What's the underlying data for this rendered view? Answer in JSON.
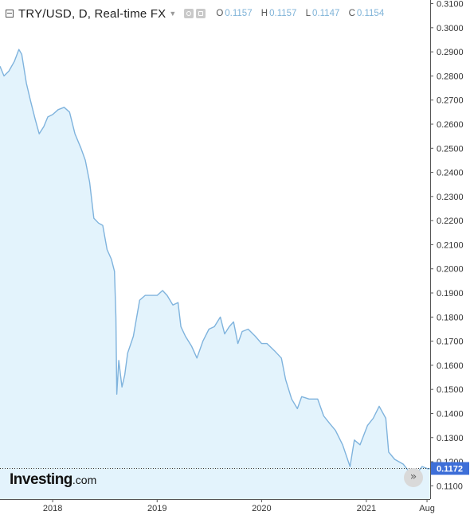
{
  "header": {
    "symbol": "TRY/USD, D, Real-time FX",
    "ohlc": [
      {
        "key": "O",
        "value": "0.1157"
      },
      {
        "key": "H",
        "value": "0.1157"
      },
      {
        "key": "L",
        "value": "0.1147"
      },
      {
        "key": "C",
        "value": "0.1154"
      }
    ]
  },
  "logo": {
    "brand": "Investing",
    "suffix": ".com"
  },
  "colors": {
    "line": "#7fb3dd",
    "area": "#e3f3fc",
    "price_tag": "#3e6fd8"
  },
  "scroll_button": {
    "label": "»"
  },
  "chart_data": {
    "type": "area",
    "title": "",
    "xlabel": "",
    "ylabel": "",
    "x_ticks": [
      "2018",
      "2019",
      "2020",
      "2021",
      "Aug"
    ],
    "y_ticks": [
      "0.1100",
      "0.1200",
      "0.1300",
      "0.1400",
      "0.1500",
      "0.1600",
      "0.1700",
      "0.1800",
      "0.1900",
      "0.2000",
      "0.2100",
      "0.2200",
      "0.2300",
      "0.2400",
      "0.2500",
      "0.2600",
      "0.2700",
      "0.2800",
      "0.2900",
      "0.3000",
      "0.3100"
    ],
    "ylim": [
      0.1045,
      0.3115
    ],
    "xlim": [
      "2017-07-01",
      "2021-08-12"
    ],
    "last_price": "0.1172",
    "last_value": 0.1172,
    "grid": false,
    "series": [
      {
        "values": [
          [
            "2017-07-01",
            0.284
          ],
          [
            "2017-07-15",
            0.28
          ],
          [
            "2017-08-01",
            0.282
          ],
          [
            "2017-08-20",
            0.286
          ],
          [
            "2017-09-05",
            0.291
          ],
          [
            "2017-09-15",
            0.289
          ],
          [
            "2017-10-01",
            0.277
          ],
          [
            "2017-10-15",
            0.27
          ],
          [
            "2017-11-01",
            0.262
          ],
          [
            "2017-11-15",
            0.256
          ],
          [
            "2017-12-01",
            0.259
          ],
          [
            "2017-12-15",
            0.263
          ],
          [
            "2018-01-01",
            0.264
          ],
          [
            "2018-01-20",
            0.266
          ],
          [
            "2018-02-10",
            0.267
          ],
          [
            "2018-03-01",
            0.265
          ],
          [
            "2018-03-20",
            0.256
          ],
          [
            "2018-04-10",
            0.25
          ],
          [
            "2018-04-25",
            0.245
          ],
          [
            "2018-05-10",
            0.236
          ],
          [
            "2018-05-25",
            0.221
          ],
          [
            "2018-06-10",
            0.219
          ],
          [
            "2018-06-25",
            0.218
          ],
          [
            "2018-07-10",
            0.208
          ],
          [
            "2018-07-25",
            0.204
          ],
          [
            "2018-08-05",
            0.199
          ],
          [
            "2018-08-10",
            0.18
          ],
          [
            "2018-08-13",
            0.148
          ],
          [
            "2018-08-20",
            0.162
          ],
          [
            "2018-08-31",
            0.151
          ],
          [
            "2018-09-10",
            0.156
          ],
          [
            "2018-09-20",
            0.165
          ],
          [
            "2018-10-10",
            0.172
          ],
          [
            "2018-11-01",
            0.187
          ],
          [
            "2018-11-20",
            0.189
          ],
          [
            "2018-12-10",
            0.189
          ],
          [
            "2019-01-01",
            0.189
          ],
          [
            "2019-01-20",
            0.191
          ],
          [
            "2019-02-05",
            0.189
          ],
          [
            "2019-02-25",
            0.185
          ],
          [
            "2019-03-15",
            0.186
          ],
          [
            "2019-03-25",
            0.176
          ],
          [
            "2019-04-10",
            0.172
          ],
          [
            "2019-05-01",
            0.168
          ],
          [
            "2019-05-20",
            0.163
          ],
          [
            "2019-06-10",
            0.17
          ],
          [
            "2019-07-01",
            0.175
          ],
          [
            "2019-07-20",
            0.176
          ],
          [
            "2019-08-10",
            0.18
          ],
          [
            "2019-08-25",
            0.173
          ],
          [
            "2019-09-10",
            0.176
          ],
          [
            "2019-09-25",
            0.178
          ],
          [
            "2019-10-10",
            0.169
          ],
          [
            "2019-10-25",
            0.174
          ],
          [
            "2019-11-15",
            0.175
          ],
          [
            "2019-12-10",
            0.172
          ],
          [
            "2020-01-01",
            0.169
          ],
          [
            "2020-01-20",
            0.169
          ],
          [
            "2020-02-15",
            0.166
          ],
          [
            "2020-03-10",
            0.163
          ],
          [
            "2020-03-25",
            0.154
          ],
          [
            "2020-04-15",
            0.146
          ],
          [
            "2020-05-05",
            0.142
          ],
          [
            "2020-05-20",
            0.147
          ],
          [
            "2020-06-15",
            0.146
          ],
          [
            "2020-07-15",
            0.146
          ],
          [
            "2020-08-05",
            0.139
          ],
          [
            "2020-08-25",
            0.136
          ],
          [
            "2020-09-15",
            0.133
          ],
          [
            "2020-10-10",
            0.127
          ],
          [
            "2020-11-05",
            0.118
          ],
          [
            "2020-11-20",
            0.129
          ],
          [
            "2020-12-10",
            0.127
          ],
          [
            "2021-01-05",
            0.135
          ],
          [
            "2021-01-25",
            0.138
          ],
          [
            "2021-02-15",
            0.143
          ],
          [
            "2021-03-10",
            0.138
          ],
          [
            "2021-03-20",
            0.124
          ],
          [
            "2021-04-10",
            0.121
          ],
          [
            "2021-05-10",
            0.119
          ],
          [
            "2021-06-05",
            0.115
          ],
          [
            "2021-06-25",
            0.115
          ],
          [
            "2021-07-15",
            0.118
          ],
          [
            "2021-08-05",
            0.117
          ],
          [
            "2021-08-12",
            0.1172
          ]
        ]
      }
    ]
  }
}
